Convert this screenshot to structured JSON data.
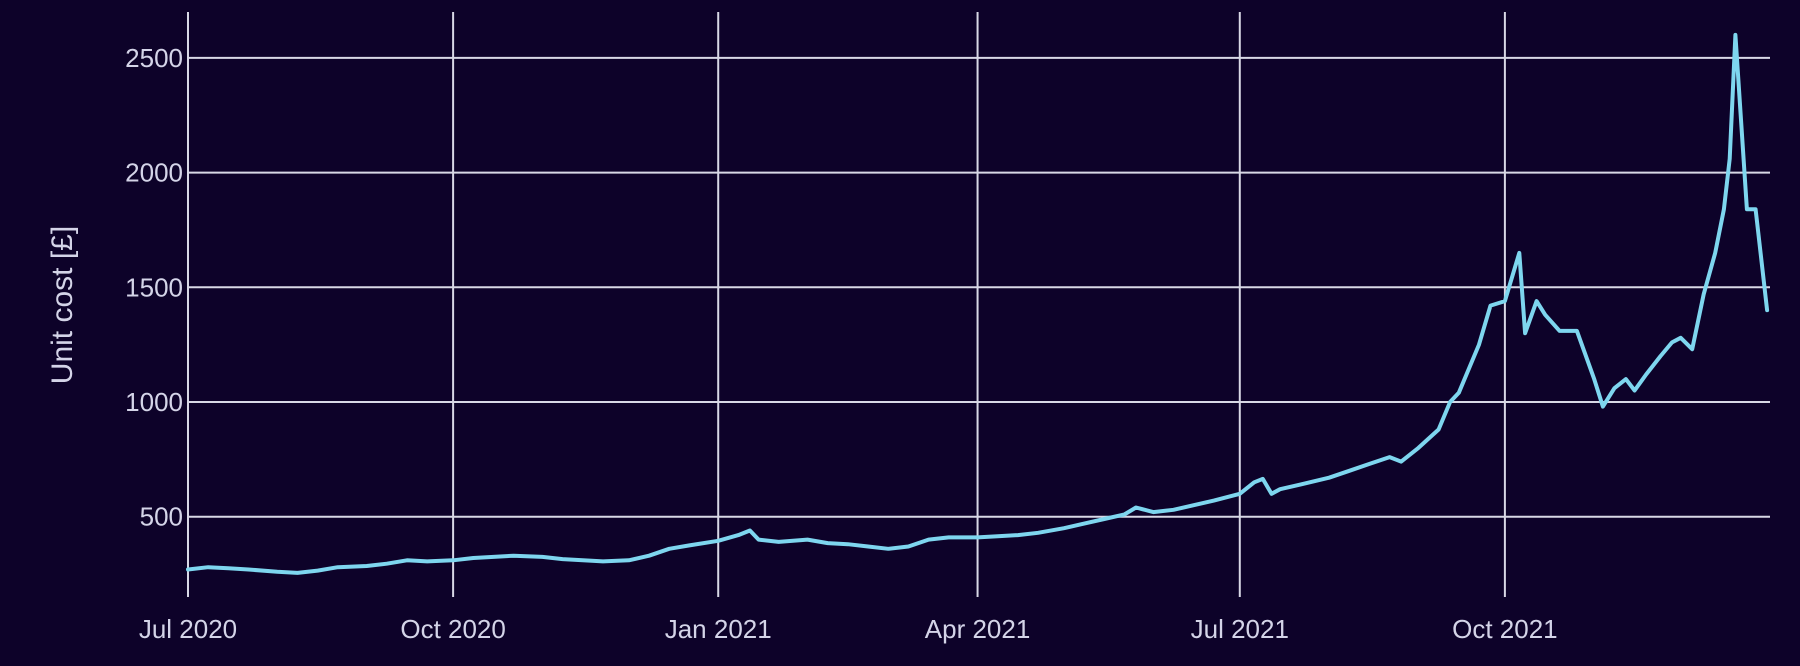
{
  "chart_data": {
    "type": "line",
    "title": "",
    "xlabel": "",
    "ylabel": "Unit cost [£]",
    "x_axis": {
      "type": "date",
      "range": [
        "2020-07-01",
        "2022-01-01"
      ],
      "ticks": [
        {
          "date": "2020-07-01",
          "label": "Jul 2020"
        },
        {
          "date": "2020-10-01",
          "label": "Oct 2020"
        },
        {
          "date": "2021-01-01",
          "label": "Jan 2021"
        },
        {
          "date": "2021-04-01",
          "label": "Apr 2021"
        },
        {
          "date": "2021-07-01",
          "label": "Jul 2021"
        },
        {
          "date": "2021-10-01",
          "label": "Oct 2021"
        }
      ]
    },
    "y_axis": {
      "range": [
        150,
        2700
      ],
      "ticks": [
        500,
        1000,
        1500,
        2000,
        2500
      ]
    },
    "grid": true,
    "colors": {
      "background": "#0d0229",
      "grid": "#d8d8e6",
      "text": "#d4d4e8",
      "line": "#7ed6ef"
    },
    "series": [
      {
        "color": "#7ed6ef",
        "x": [
          "2020-07-01",
          "2020-07-08",
          "2020-07-15",
          "2020-07-22",
          "2020-08-01",
          "2020-08-08",
          "2020-08-15",
          "2020-08-22",
          "2020-09-01",
          "2020-09-08",
          "2020-09-15",
          "2020-09-22",
          "2020-10-01",
          "2020-10-08",
          "2020-10-15",
          "2020-10-22",
          "2020-11-01",
          "2020-11-08",
          "2020-11-15",
          "2020-11-22",
          "2020-12-01",
          "2020-12-08",
          "2020-12-15",
          "2020-12-22",
          "2021-01-01",
          "2021-01-08",
          "2021-01-12",
          "2021-01-15",
          "2021-01-22",
          "2021-02-01",
          "2021-02-08",
          "2021-02-15",
          "2021-02-22",
          "2021-03-01",
          "2021-03-08",
          "2021-03-15",
          "2021-03-22",
          "2021-04-01",
          "2021-04-08",
          "2021-04-15",
          "2021-04-22",
          "2021-05-01",
          "2021-05-08",
          "2021-05-15",
          "2021-05-22",
          "2021-05-26",
          "2021-06-01",
          "2021-06-08",
          "2021-06-15",
          "2021-06-22",
          "2021-07-01",
          "2021-07-06",
          "2021-07-09",
          "2021-07-12",
          "2021-07-15",
          "2021-07-22",
          "2021-08-01",
          "2021-08-08",
          "2021-08-15",
          "2021-08-22",
          "2021-08-26",
          "2021-09-01",
          "2021-09-08",
          "2021-09-12",
          "2021-09-15",
          "2021-09-22",
          "2021-09-26",
          "2021-10-01",
          "2021-10-06",
          "2021-10-08",
          "2021-10-12",
          "2021-10-15",
          "2021-10-20",
          "2021-10-26",
          "2021-11-01",
          "2021-11-04",
          "2021-11-08",
          "2021-11-12",
          "2021-11-15",
          "2021-11-19",
          "2021-11-24",
          "2021-11-28",
          "2021-12-01",
          "2021-12-05",
          "2021-12-09",
          "2021-12-13",
          "2021-12-16",
          "2021-12-18",
          "2021-12-20",
          "2021-12-24",
          "2021-12-27",
          "2021-12-31"
        ],
        "y": [
          270,
          280,
          275,
          270,
          260,
          255,
          265,
          280,
          285,
          295,
          310,
          305,
          310,
          320,
          325,
          330,
          325,
          315,
          310,
          305,
          310,
          330,
          360,
          375,
          395,
          420,
          440,
          400,
          390,
          400,
          385,
          380,
          370,
          360,
          370,
          400,
          410,
          410,
          415,
          420,
          430,
          450,
          470,
          490,
          510,
          540,
          520,
          530,
          550,
          570,
          600,
          650,
          665,
          600,
          620,
          640,
          670,
          700,
          730,
          760,
          740,
          800,
          880,
          1000,
          1040,
          1250,
          1420,
          1440,
          1650,
          1300,
          1440,
          1380,
          1310,
          1310,
          1100,
          980,
          1060,
          1100,
          1050,
          1120,
          1200,
          1260,
          1280,
          1230,
          1470,
          1650,
          1840,
          2060,
          2600,
          1840,
          1840,
          1400
        ]
      }
    ]
  }
}
